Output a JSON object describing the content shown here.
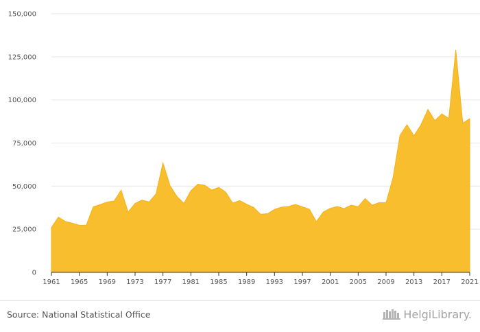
{
  "colors": {
    "fill": "#F8BE2E",
    "stroke": "#F2B21C",
    "grid": "#e6e6e6",
    "axis": "#333333"
  },
  "footer": {
    "source": "Source: National Statistical Office",
    "brand": "HelgiLibrary."
  },
  "chart_data": {
    "type": "area",
    "title": "",
    "xlabel": "",
    "ylabel": "",
    "ylim": [
      0,
      150000
    ],
    "xlim": [
      1961,
      2021
    ],
    "y_ticks": [
      0,
      25000,
      50000,
      75000,
      100000,
      125000,
      150000
    ],
    "y_tick_labels": [
      "0",
      "25,000",
      "50,000",
      "75,000",
      "100,000",
      "125,000",
      "150,000"
    ],
    "x_ticks": [
      1961,
      1965,
      1969,
      1973,
      1977,
      1981,
      1985,
      1989,
      1993,
      1997,
      2001,
      2005,
      2009,
      2013,
      2017,
      2021
    ],
    "x_tick_labels": [
      "1961",
      "1965",
      "1969",
      "1973",
      "1977",
      "1981",
      "1985",
      "1989",
      "1993",
      "1997",
      "2001",
      "2005",
      "2009",
      "2013",
      "2017",
      "2021"
    ],
    "grid": true,
    "legend": false,
    "series": [
      {
        "x": [
          1961,
          1962,
          1963,
          1964,
          1965,
          1966,
          1967,
          1968,
          1969,
          1970,
          1971,
          1972,
          1973,
          1974,
          1975,
          1976,
          1977,
          1978,
          1979,
          1980,
          1981,
          1982,
          1983,
          1984,
          1985,
          1986,
          1987,
          1988,
          1989,
          1990,
          1991,
          1992,
          1993,
          1994,
          1995,
          1996,
          1997,
          1998,
          1999,
          2000,
          2001,
          2002,
          2003,
          2004,
          2005,
          2006,
          2007,
          2008,
          2009,
          2010,
          2011,
          2012,
          2013,
          2014,
          2015,
          2016,
          2017,
          2018,
          2019,
          2020,
          2021
        ],
        "values": [
          26000,
          32000,
          29500,
          28500,
          27300,
          27300,
          38000,
          39300,
          40800,
          41400,
          47700,
          35000,
          40000,
          41900,
          40800,
          45400,
          63500,
          50400,
          44000,
          40000,
          47300,
          51100,
          50500,
          47700,
          49300,
          46500,
          40200,
          41600,
          39500,
          37700,
          33700,
          34000,
          36500,
          37800,
          38200,
          39400,
          38000,
          36600,
          29400,
          35000,
          37100,
          38200,
          37000,
          39000,
          38100,
          42800,
          39000,
          40400,
          40400,
          54900,
          79400,
          85600,
          79200,
          85500,
          94500,
          88000,
          91900,
          89300,
          129000,
          86500,
          89100
        ]
      }
    ]
  }
}
